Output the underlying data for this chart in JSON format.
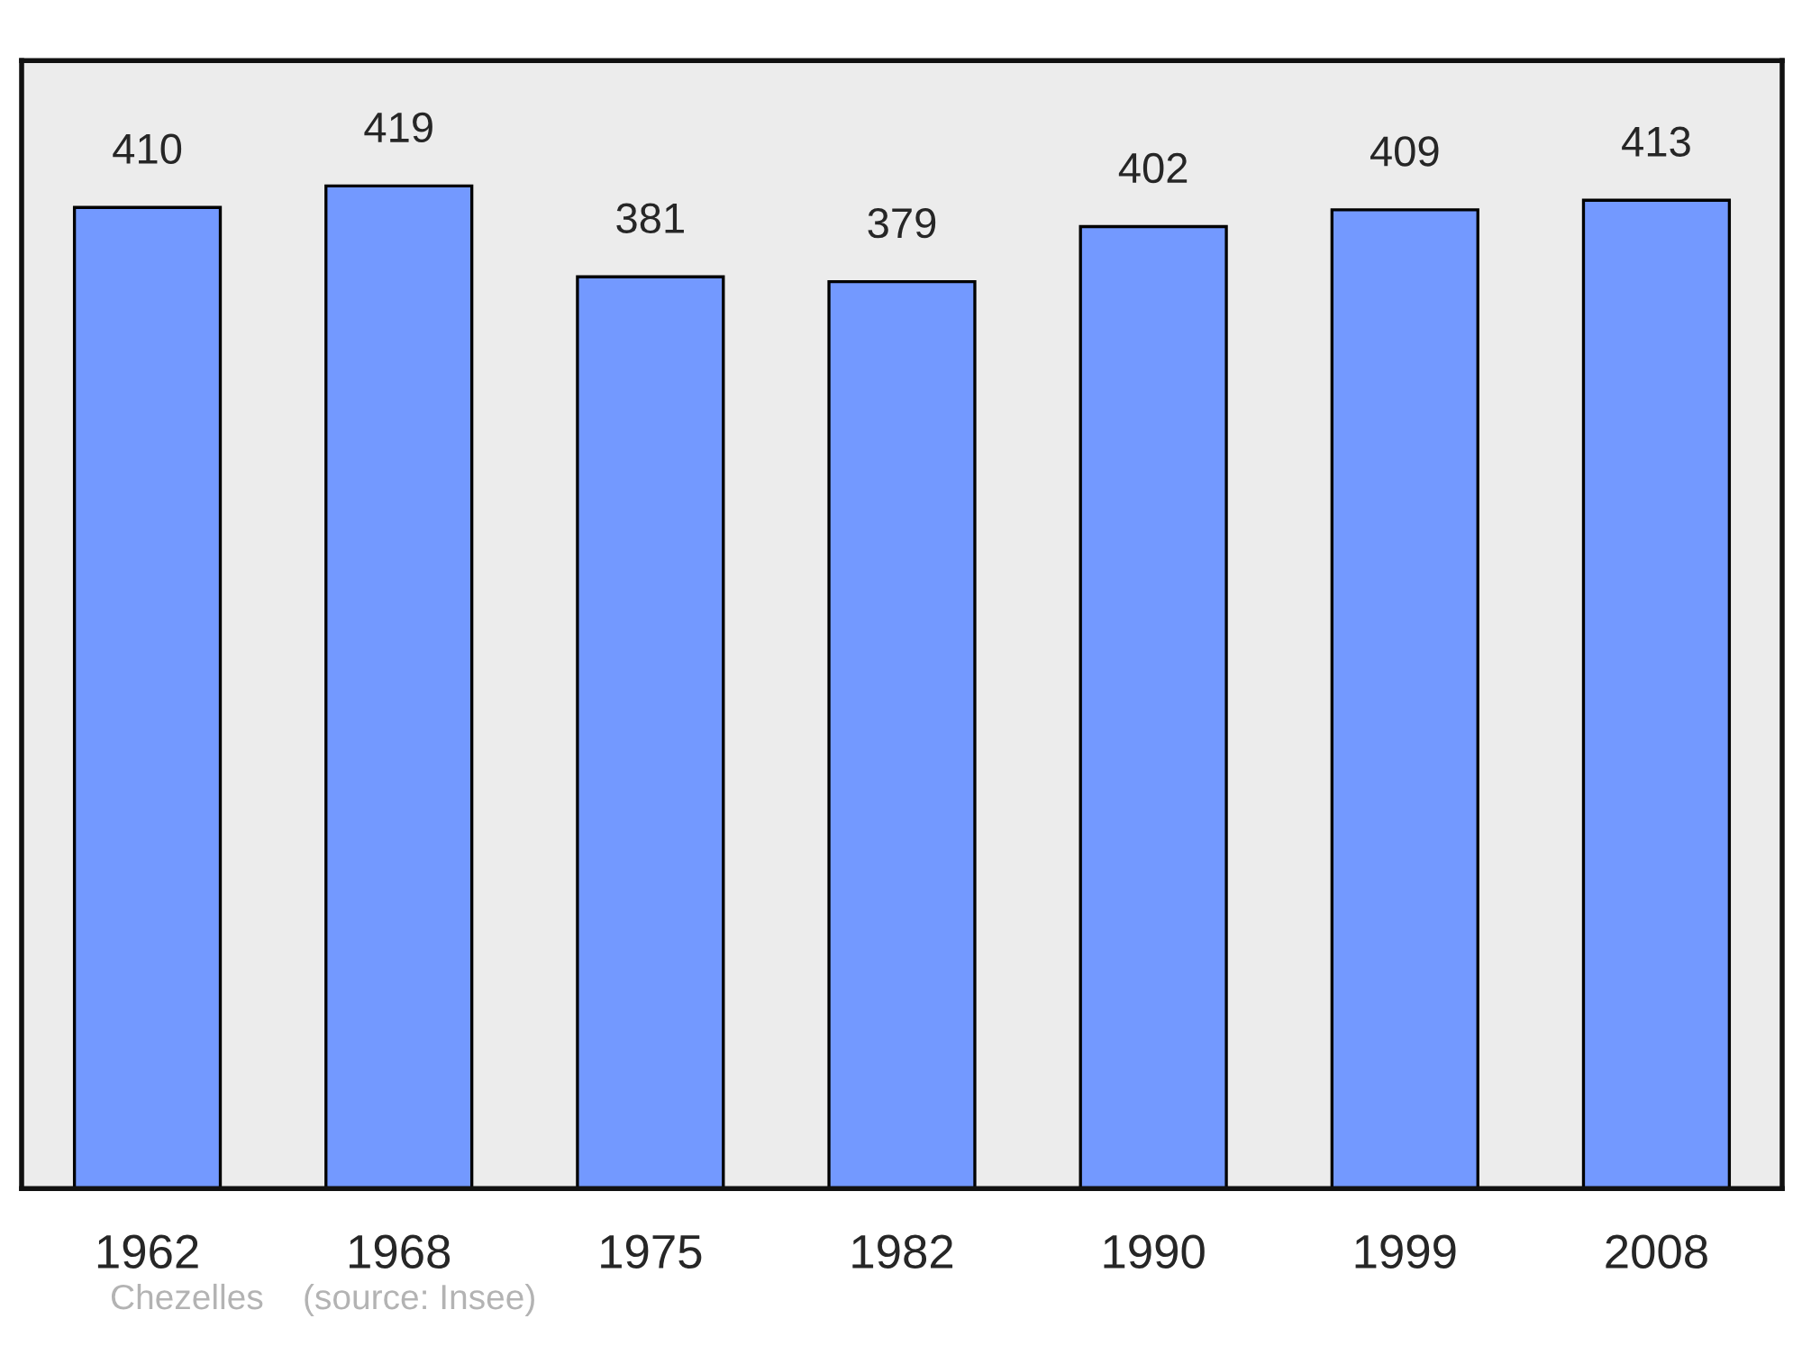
{
  "chart_data": {
    "type": "bar",
    "categories": [
      "1962",
      "1968",
      "1975",
      "1982",
      "1990",
      "1999",
      "2008"
    ],
    "values": [
      410,
      419,
      381,
      379,
      402,
      409,
      413
    ],
    "color": "#7399ff",
    "data_labels": true,
    "tick_labels": "x",
    "grid": false,
    "legend": false,
    "annotations": [
      "Chezelles    (source: Insee)"
    ]
  }
}
